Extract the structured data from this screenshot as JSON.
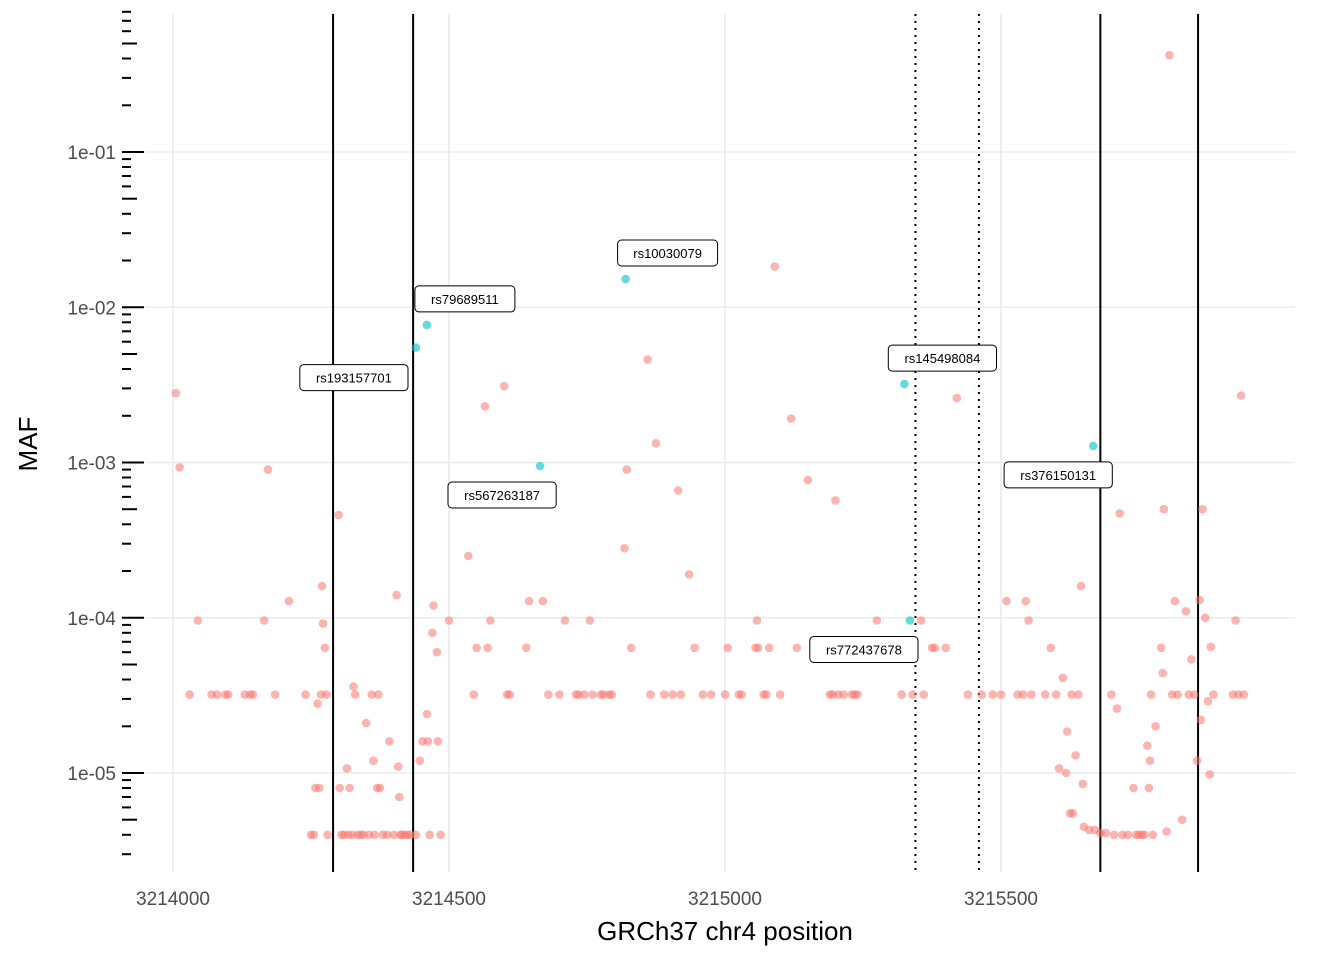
{
  "chart_data": {
    "type": "scatter",
    "xlabel": "GRCh37 chr4 position",
    "ylabel": "MAF",
    "x_ticks": [
      3214000,
      3214500,
      3215000,
      3215500
    ],
    "y_ticks": [
      1e-05,
      0.0001,
      0.001,
      0.01,
      0.1
    ],
    "y_tick_labels": [
      "1e-05",
      "1e-04",
      "1e-03",
      "1e-02",
      "1e-01"
    ],
    "xlim": [
      3213955,
      3215960
    ],
    "ylim": [
      2.6e-06,
      0.8
    ],
    "y_scale": "log10",
    "grid": true,
    "legend": "none",
    "colors": {
      "other": "#F8766D",
      "highlighted": "#00BFC4",
      "grid": "#EBEBEB",
      "vline": "#000000"
    },
    "vlines_solid": [
      3214290,
      3214435,
      3215680,
      3215857
    ],
    "vlines_dotted": [
      3215345,
      3215460
    ],
    "highlighted": [
      {
        "label": "rs79689511",
        "x": 3214460,
        "y": 0.0077
      },
      {
        "label": "rs193157701",
        "x": 3214440,
        "y": 0.0055
      },
      {
        "label": "rs10030079",
        "x": 3214820,
        "y": 0.0152
      },
      {
        "label": "rs567263187",
        "x": 3214665,
        "y": 0.00095
      },
      {
        "label": "rs145498084",
        "x": 3215325,
        "y": 0.0032
      },
      {
        "label": "rs376150131",
        "x": 3215667,
        "y": 0.00128
      },
      {
        "label": "rs772437678",
        "x": 3215335,
        "y": 9.6e-05
      }
    ],
    "points": [
      [
        3214005,
        0.0028
      ],
      [
        3214012,
        0.00093
      ],
      [
        3214030,
        3.2e-05
      ],
      [
        3214045,
        9.6e-05
      ],
      [
        3214070,
        3.2e-05
      ],
      [
        3214080,
        3.2e-05
      ],
      [
        3214095,
        3.2e-05
      ],
      [
        3214100,
        3.2e-05
      ],
      [
        3214130,
        3.2e-05
      ],
      [
        3214140,
        3.2e-05
      ],
      [
        3214145,
        3.2e-05
      ],
      [
        3214165,
        9.6e-05
      ],
      [
        3214172,
        0.0009
      ],
      [
        3214185,
        3.2e-05
      ],
      [
        3214210,
        0.000128
      ],
      [
        3214240,
        3.2e-05
      ],
      [
        3214250,
        4e-06
      ],
      [
        3214255,
        4e-06
      ],
      [
        3214258,
        8e-06
      ],
      [
        3214262,
        2.8e-05
      ],
      [
        3214265,
        8e-06
      ],
      [
        3214268,
        3.2e-05
      ],
      [
        3214270,
        0.00016
      ],
      [
        3214272,
        9.2e-05
      ],
      [
        3214275,
        6.4e-05
      ],
      [
        3214278,
        3.2e-05
      ],
      [
        3214280,
        4e-06
      ],
      [
        3214300,
        0.00046
      ],
      [
        3214302,
        8e-06
      ],
      [
        3214305,
        4e-06
      ],
      [
        3214310,
        4e-06
      ],
      [
        3214315,
        1.07e-05
      ],
      [
        3214318,
        4e-06
      ],
      [
        3214320,
        8e-06
      ],
      [
        3214325,
        4e-06
      ],
      [
        3214327,
        3.6e-05
      ],
      [
        3214330,
        3.2e-05
      ],
      [
        3214335,
        4e-06
      ],
      [
        3214340,
        4e-06
      ],
      [
        3214345,
        4e-06
      ],
      [
        3214350,
        2.1e-05
      ],
      [
        3214355,
        4e-06
      ],
      [
        3214360,
        3.2e-05
      ],
      [
        3214363,
        1.2e-05
      ],
      [
        3214365,
        4e-06
      ],
      [
        3214370,
        8e-06
      ],
      [
        3214372,
        3.2e-05
      ],
      [
        3214375,
        8e-06
      ],
      [
        3214380,
        4e-06
      ],
      [
        3214388,
        4e-06
      ],
      [
        3214392,
        1.6e-05
      ],
      [
        3214400,
        4e-06
      ],
      [
        3214405,
        0.00014
      ],
      [
        3214408,
        1.1e-05
      ],
      [
        3214410,
        7e-06
      ],
      [
        3214412,
        4e-06
      ],
      [
        3214415,
        4e-06
      ],
      [
        3214420,
        4e-06
      ],
      [
        3214425,
        4e-06
      ],
      [
        3214430,
        4e-06
      ],
      [
        3214440,
        4e-06
      ],
      [
        3214447,
        1.2e-05
      ],
      [
        3214452,
        1.6e-05
      ],
      [
        3214460,
        2.4e-05
      ],
      [
        3214462,
        1.6e-05
      ],
      [
        3214465,
        4e-06
      ],
      [
        3214470,
        8e-05
      ],
      [
        3214472,
        0.00012
      ],
      [
        3214478,
        6e-05
      ],
      [
        3214480,
        1.6e-05
      ],
      [
        3214485,
        4e-06
      ],
      [
        3214500,
        9.6e-05
      ],
      [
        3214535,
        0.00025
      ],
      [
        3214545,
        3.2e-05
      ],
      [
        3214550,
        6.4e-05
      ],
      [
        3214565,
        0.0023
      ],
      [
        3214570,
        6.4e-05
      ],
      [
        3214575,
        9.6e-05
      ],
      [
        3214600,
        0.0031
      ],
      [
        3214605,
        3.2e-05
      ],
      [
        3214610,
        3.2e-05
      ],
      [
        3214640,
        6.4e-05
      ],
      [
        3214645,
        0.000128
      ],
      [
        3214670,
        0.000128
      ],
      [
        3214680,
        3.2e-05
      ],
      [
        3214700,
        3.2e-05
      ],
      [
        3214710,
        9.6e-05
      ],
      [
        3214730,
        3.2e-05
      ],
      [
        3214735,
        3.2e-05
      ],
      [
        3214745,
        3.2e-05
      ],
      [
        3214755,
        9.6e-05
      ],
      [
        3214760,
        3.2e-05
      ],
      [
        3214775,
        3.2e-05
      ],
      [
        3214780,
        3.2e-05
      ],
      [
        3214790,
        3.2e-05
      ],
      [
        3214795,
        3.2e-05
      ],
      [
        3214818,
        0.00028
      ],
      [
        3214822,
        0.0009
      ],
      [
        3214830,
        6.4e-05
      ],
      [
        3214860,
        0.0046
      ],
      [
        3214865,
        3.2e-05
      ],
      [
        3214875,
        0.00133
      ],
      [
        3214890,
        3.2e-05
      ],
      [
        3214905,
        3.2e-05
      ],
      [
        3214915,
        0.00066
      ],
      [
        3214920,
        3.2e-05
      ],
      [
        3214935,
        0.00019
      ],
      [
        3214945,
        6.4e-05
      ],
      [
        3214960,
        3.2e-05
      ],
      [
        3214975,
        3.2e-05
      ],
      [
        3215000,
        3.2e-05
      ],
      [
        3215005,
        6.4e-05
      ],
      [
        3215025,
        3.2e-05
      ],
      [
        3215030,
        3.2e-05
      ],
      [
        3215055,
        6.4e-05
      ],
      [
        3215058,
        9.6e-05
      ],
      [
        3215060,
        6.4e-05
      ],
      [
        3215070,
        3.2e-05
      ],
      [
        3215075,
        3.2e-05
      ],
      [
        3215080,
        6.4e-05
      ],
      [
        3215090,
        0.0183
      ],
      [
        3215100,
        3.2e-05
      ],
      [
        3215120,
        0.00192
      ],
      [
        3215130,
        6.4e-05
      ],
      [
        3215150,
        0.00077
      ],
      [
        3215170,
        6.4e-05
      ],
      [
        3215190,
        3.2e-05
      ],
      [
        3215195,
        3.2e-05
      ],
      [
        3215200,
        0.00057
      ],
      [
        3215205,
        3.2e-05
      ],
      [
        3215215,
        3.2e-05
      ],
      [
        3215220,
        6.4e-05
      ],
      [
        3215230,
        3.2e-05
      ],
      [
        3215235,
        3.2e-05
      ],
      [
        3215240,
        3.2e-05
      ],
      [
        3215275,
        9.6e-05
      ],
      [
        3215290,
        6.4e-05
      ],
      [
        3215320,
        3.2e-05
      ],
      [
        3215340,
        3.2e-05
      ],
      [
        3215355,
        9.6e-05
      ],
      [
        3215360,
        3.2e-05
      ],
      [
        3215375,
        6.4e-05
      ],
      [
        3215380,
        6.4e-05
      ],
      [
        3215400,
        6.4e-05
      ],
      [
        3215420,
        0.0026
      ],
      [
        3215440,
        3.2e-05
      ],
      [
        3215465,
        3.2e-05
      ],
      [
        3215485,
        3.2e-05
      ],
      [
        3215500,
        3.2e-05
      ],
      [
        3215510,
        0.000128
      ],
      [
        3215530,
        3.2e-05
      ],
      [
        3215540,
        3.2e-05
      ],
      [
        3215545,
        0.000128
      ],
      [
        3215550,
        9.6e-05
      ],
      [
        3215555,
        3.2e-05
      ],
      [
        3215580,
        3.2e-05
      ],
      [
        3215590,
        6.4e-05
      ],
      [
        3215600,
        3.2e-05
      ],
      [
        3215605,
        1.07e-05
      ],
      [
        3215612,
        4.1e-05
      ],
      [
        3215618,
        1e-05
      ],
      [
        3215620,
        1.85e-05
      ],
      [
        3215625,
        5.5e-06
      ],
      [
        3215628,
        3.2e-05
      ],
      [
        3215630,
        5.5e-06
      ],
      [
        3215635,
        1.3e-05
      ],
      [
        3215640,
        3.2e-05
      ],
      [
        3215645,
        0.00016
      ],
      [
        3215648,
        8.5e-06
      ],
      [
        3215650,
        4.5e-06
      ],
      [
        3215660,
        4.3e-06
      ],
      [
        3215670,
        4.3e-06
      ],
      [
        3215680,
        4.1e-06
      ],
      [
        3215690,
        4.1e-06
      ],
      [
        3215700,
        3.2e-05
      ],
      [
        3215705,
        4e-06
      ],
      [
        3215710,
        2.6e-05
      ],
      [
        3215715,
        0.00047
      ],
      [
        3215720,
        4e-06
      ],
      [
        3215730,
        4e-06
      ],
      [
        3215740,
        8e-06
      ],
      [
        3215745,
        4e-06
      ],
      [
        3215750,
        4e-06
      ],
      [
        3215755,
        4e-06
      ],
      [
        3215760,
        4e-06
      ],
      [
        3215765,
        1.5e-05
      ],
      [
        3215768,
        8e-06
      ],
      [
        3215770,
        1.2e-05
      ],
      [
        3215772,
        3.2e-05
      ],
      [
        3215775,
        4e-06
      ],
      [
        3215780,
        2e-05
      ],
      [
        3215790,
        6.4e-05
      ],
      [
        3215793,
        4.4e-05
      ],
      [
        3215795,
        0.0005
      ],
      [
        3215800,
        4.2e-06
      ],
      [
        3215805,
        0.42
      ],
      [
        3215810,
        3.2e-05
      ],
      [
        3215815,
        0.000128
      ],
      [
        3215820,
        3.2e-05
      ],
      [
        3215828,
        5e-06
      ],
      [
        3215835,
        0.00011
      ],
      [
        3215840,
        3.2e-05
      ],
      [
        3215845,
        5.4e-05
      ],
      [
        3215850,
        3.2e-05
      ],
      [
        3215855,
        1.2e-05
      ],
      [
        3215860,
        0.00013
      ],
      [
        3215862,
        2.2e-05
      ],
      [
        3215865,
        0.0005
      ],
      [
        3215870,
        0.0001
      ],
      [
        3215875,
        2.9e-05
      ],
      [
        3215878,
        9.8e-06
      ],
      [
        3215880,
        6.5e-05
      ],
      [
        3215885,
        3.2e-05
      ],
      [
        3215920,
        3.2e-05
      ],
      [
        3215925,
        9.6e-05
      ],
      [
        3215930,
        3.2e-05
      ],
      [
        3215935,
        0.0027
      ],
      [
        3215940,
        3.2e-05
      ]
    ]
  }
}
